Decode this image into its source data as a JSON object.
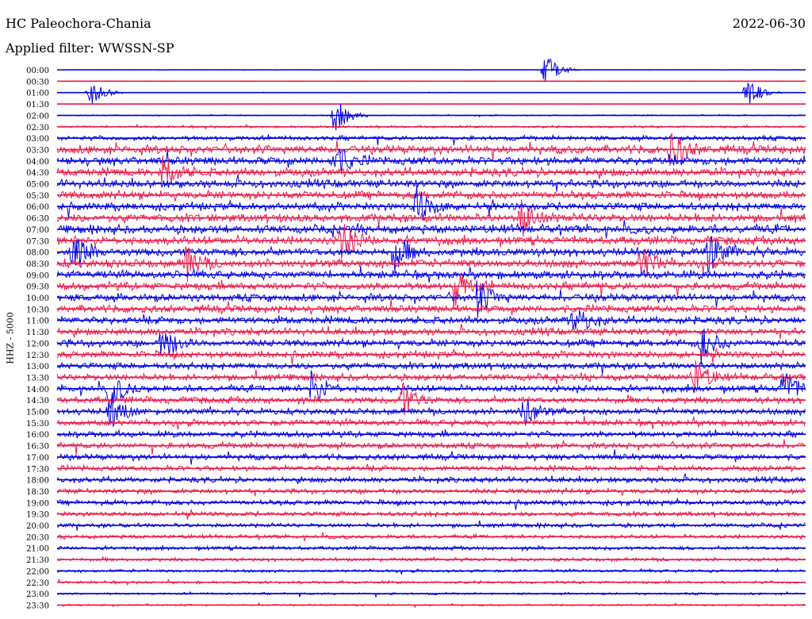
{
  "header": {
    "station": "HC Paleochora-Chania",
    "date": "2022-06-30",
    "filter": "Applied filter: WWSSN-SP"
  },
  "chart_data": {
    "type": "line",
    "ylabel": "HHZ - 5000",
    "rows": [
      "00:00",
      "00:30",
      "01:00",
      "01:30",
      "02:00",
      "02:30",
      "03:00",
      "03:30",
      "04:00",
      "04:30",
      "05:00",
      "05:30",
      "06:00",
      "06:30",
      "07:00",
      "07:30",
      "08:00",
      "08:30",
      "09:00",
      "09:30",
      "10:00",
      "10:30",
      "11:00",
      "11:30",
      "12:00",
      "12:30",
      "13:00",
      "13:30",
      "14:00",
      "14:30",
      "15:00",
      "15:30",
      "16:00",
      "16:30",
      "17:00",
      "17:30",
      "18:00",
      "18:30",
      "19:00",
      "19:30",
      "20:00",
      "20:30",
      "21:00",
      "21:30",
      "22:00",
      "22:30",
      "23:00",
      "23:30"
    ],
    "noise_level": [
      0.05,
      0.05,
      0.06,
      0.05,
      0.15,
      0.25,
      0.55,
      1.0,
      1.0,
      1.0,
      0.95,
      0.95,
      0.95,
      1.0,
      1.0,
      1.0,
      1.0,
      1.0,
      0.95,
      0.9,
      0.9,
      0.9,
      0.9,
      0.85,
      0.85,
      0.85,
      0.8,
      0.8,
      0.8,
      0.8,
      0.75,
      0.75,
      0.7,
      0.7,
      0.7,
      0.65,
      0.65,
      0.6,
      0.6,
      0.55,
      0.5,
      0.45,
      0.45,
      0.4,
      0.35,
      0.3,
      0.25,
      0.2
    ],
    "colors": {
      "odd": "#0000e6",
      "even": "#ee1a4a"
    },
    "events": [
      {
        "row": 0,
        "t": 0.65
      },
      {
        "row": 2,
        "t": 0.04
      },
      {
        "row": 2,
        "t": 0.92
      },
      {
        "row": 4,
        "t": 0.37
      },
      {
        "row": 7,
        "t": 0.82
      },
      {
        "row": 8,
        "t": 0.37
      },
      {
        "row": 9,
        "t": 0.14
      },
      {
        "row": 12,
        "t": 0.48
      },
      {
        "row": 13,
        "t": 0.62
      },
      {
        "row": 15,
        "t": 0.38
      },
      {
        "row": 16,
        "t": 0.45
      },
      {
        "row": 16,
        "t": 0.87
      },
      {
        "row": 16,
        "t": 0.02
      },
      {
        "row": 17,
        "t": 0.17
      },
      {
        "row": 17,
        "t": 0.78
      },
      {
        "row": 19,
        "t": 0.53
      },
      {
        "row": 20,
        "t": 0.56
      },
      {
        "row": 22,
        "t": 0.69
      },
      {
        "row": 24,
        "t": 0.14
      },
      {
        "row": 24,
        "t": 0.86
      },
      {
        "row": 27,
        "t": 0.85
      },
      {
        "row": 28,
        "t": 0.34
      },
      {
        "row": 28,
        "t": 0.07
      },
      {
        "row": 28,
        "t": 0.97
      },
      {
        "row": 29,
        "t": 0.46
      },
      {
        "row": 30,
        "t": 0.07
      },
      {
        "row": 30,
        "t": 0.62
      }
    ]
  }
}
